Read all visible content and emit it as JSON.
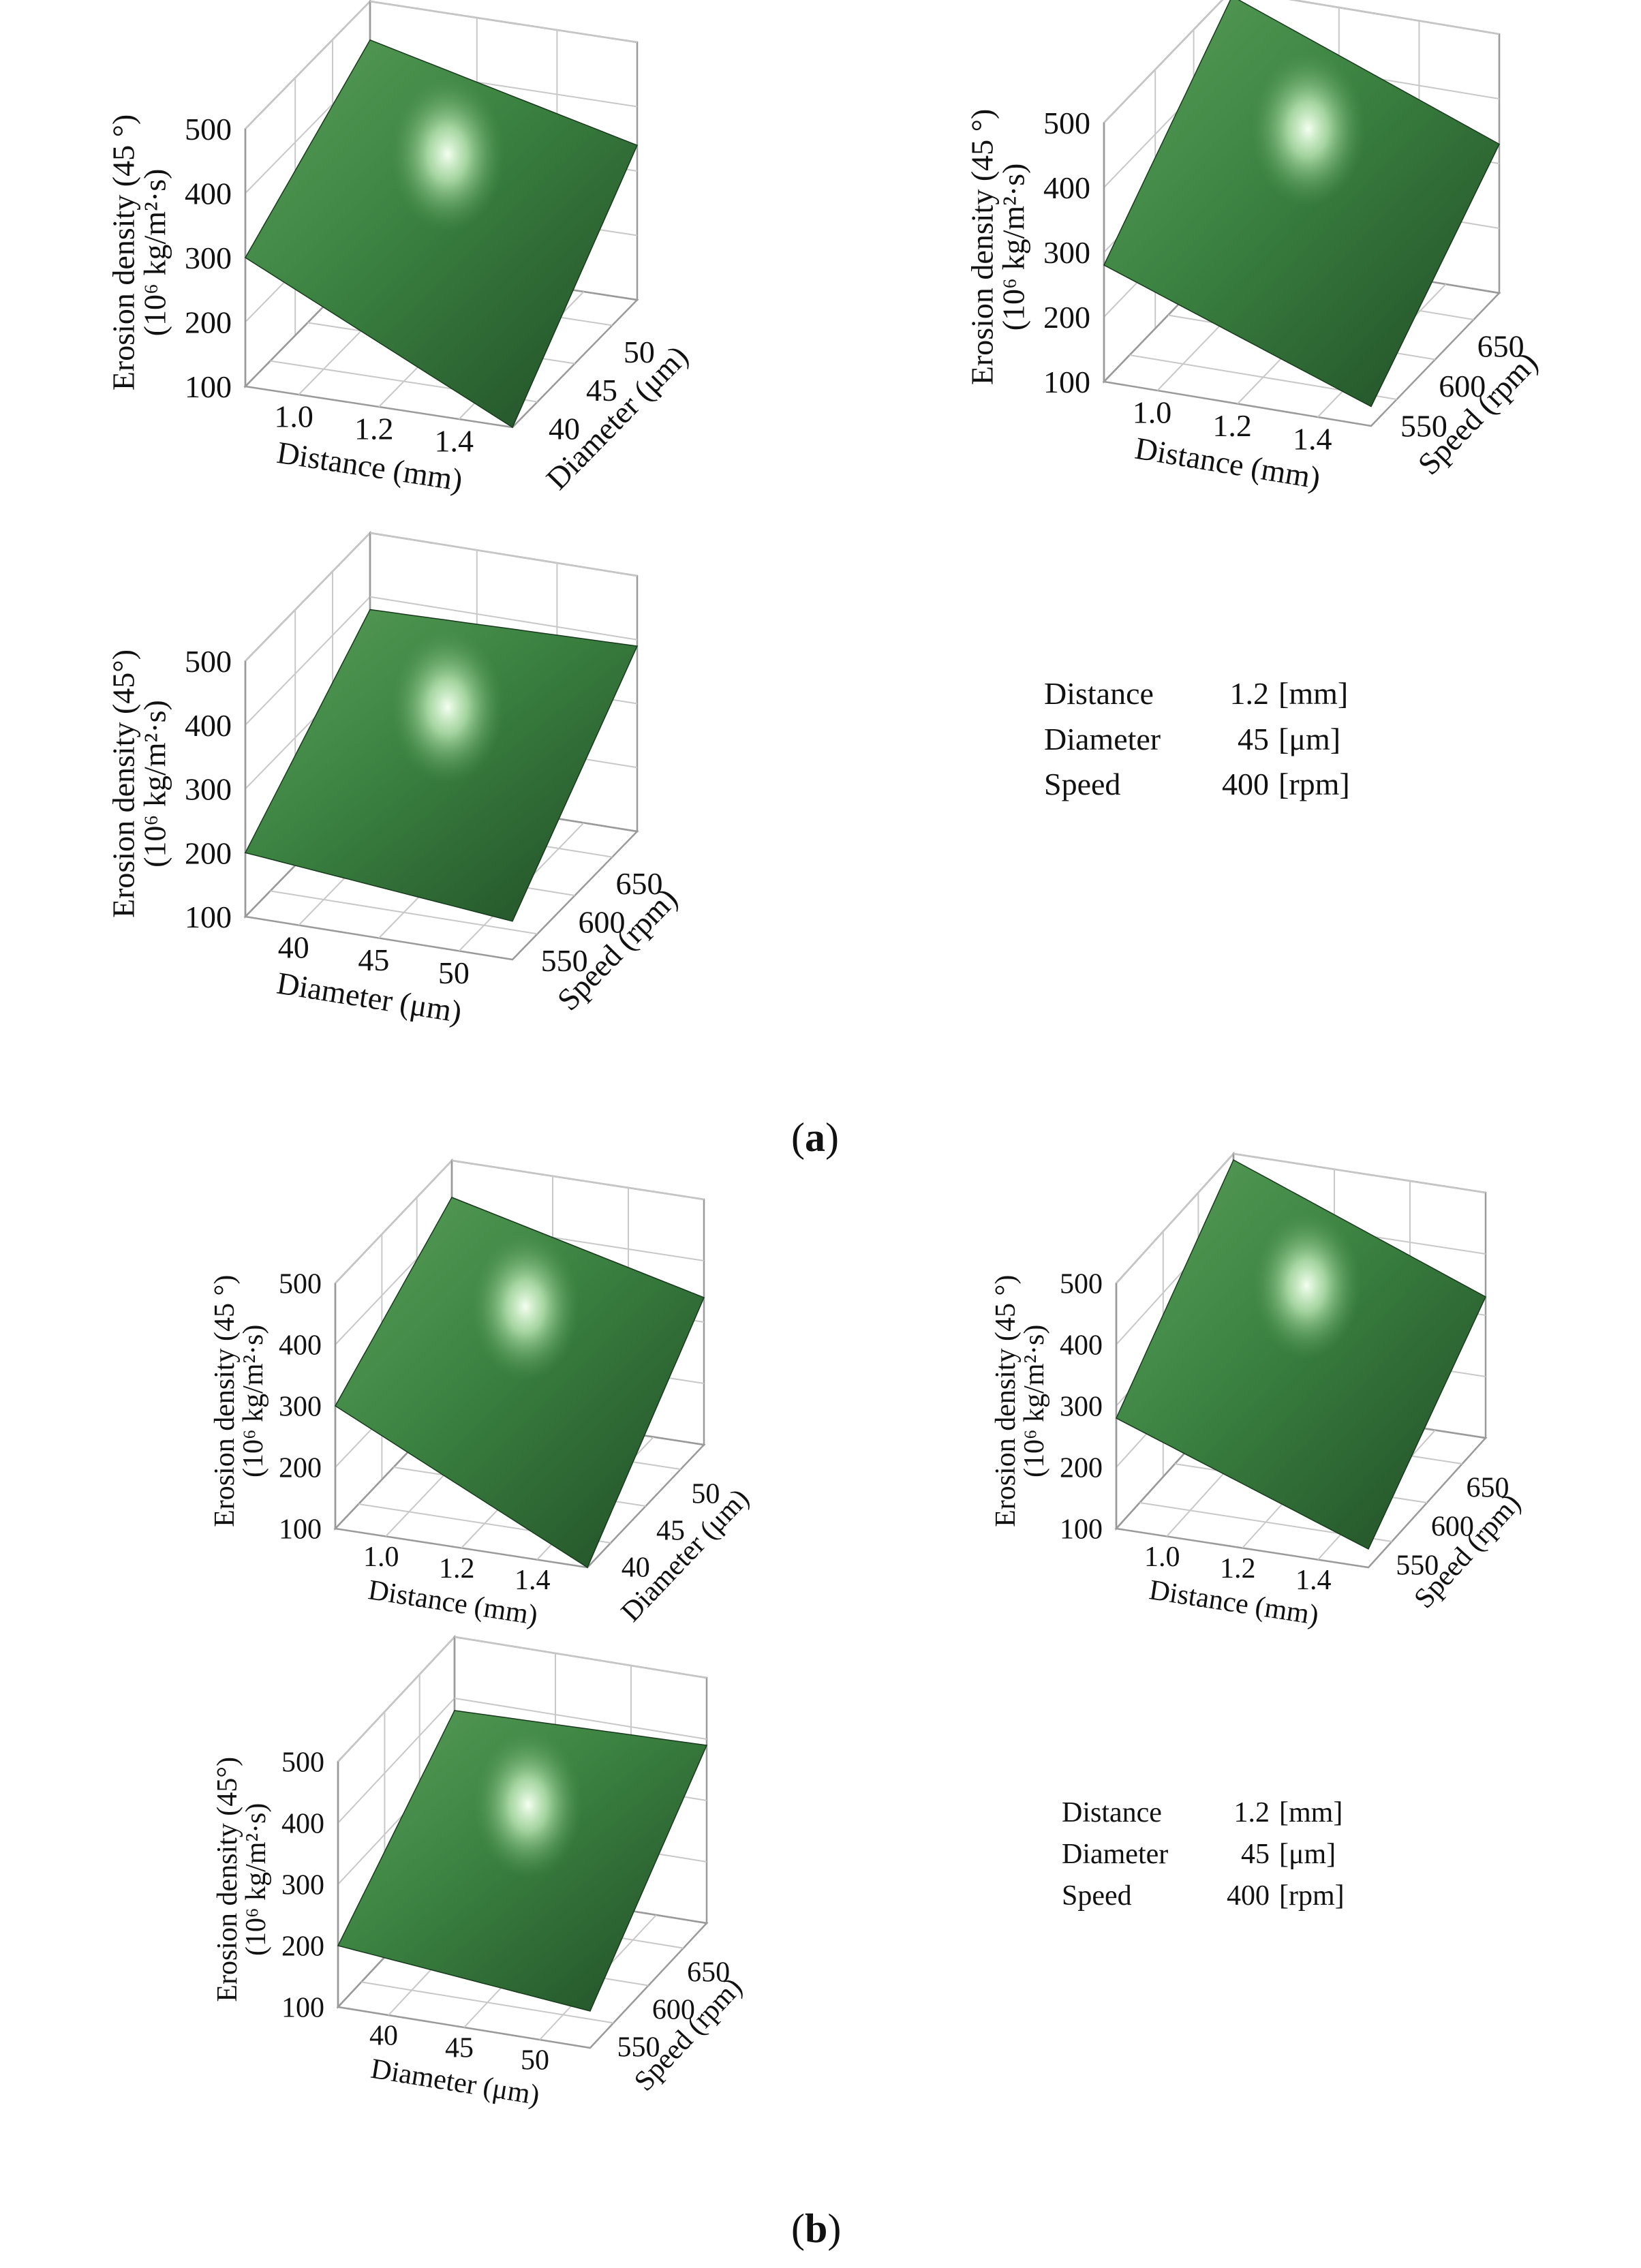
{
  "chart_data": [
    {
      "type": "surface",
      "panel": "a",
      "plot": 1,
      "zlabel_line1": "Erosion density (45 °)",
      "zlabel_line2": "(10⁶ kg/m²·s)",
      "zticks": [
        "500",
        "400",
        "300",
        "200",
        "100"
      ],
      "zlim": [
        100,
        500
      ],
      "xlabel": "Distance (mm)",
      "xticks": [
        "1.0",
        "1.2",
        "1.4"
      ],
      "ylabel": "Diameter (μm)",
      "yticks": [
        "40",
        "45",
        "50"
      ],
      "corners": {
        "left": 300,
        "back": 440,
        "right": 340,
        "front": 100
      },
      "peak": {
        "x": 1.25,
        "y": 47,
        "z": 440
      }
    },
    {
      "type": "surface",
      "panel": "a",
      "plot": 2,
      "zlabel_line1": "Erosion density (45 °)",
      "zlabel_line2": "(10⁶ kg/m²·s)",
      "zticks": [
        "500",
        "400",
        "300",
        "200",
        "100"
      ],
      "zlim": [
        100,
        500
      ],
      "xlabel": "Distance (mm)",
      "xticks": [
        "1.0",
        "1.2",
        "1.4"
      ],
      "ylabel": "Speed (rpm)",
      "yticks": [
        "550",
        "600",
        "650"
      ],
      "corners": {
        "left": 280,
        "back": 490,
        "right": 330,
        "front": 130
      },
      "peak": {
        "x": 1.2,
        "y": 620,
        "z": 480
      }
    },
    {
      "type": "surface",
      "panel": "a",
      "plot": 3,
      "zlabel_line1": "Erosion density (45°)",
      "zlabel_line2": "(10⁶ kg/m²·s)",
      "zticks": [
        "500",
        "400",
        "300",
        "200",
        "100"
      ],
      "zlim": [
        100,
        500
      ],
      "xlabel": "Diameter (μm)",
      "xticks": [
        "40",
        "45",
        "50"
      ],
      "ylabel": "Speed (rpm)",
      "yticks": [
        "550",
        "600",
        "650"
      ],
      "corners": {
        "left": 200,
        "back": 380,
        "right": 390,
        "front": 160
      },
      "peak": {
        "x": 48,
        "y": 620,
        "z": 390
      }
    },
    {
      "type": "surface",
      "panel": "b",
      "plot": 1,
      "zlabel_line1": "Erosion density (45 °)",
      "zlabel_line2": "(10⁶ kg/m²·s)",
      "zticks": [
        "500",
        "400",
        "300",
        "200",
        "100"
      ],
      "zlim": [
        100,
        500
      ],
      "xlabel": "Distance (mm)",
      "xticks": [
        "1.0",
        "1.2",
        "1.4"
      ],
      "ylabel": "Diameter (μm)",
      "yticks": [
        "40",
        "45",
        "50"
      ],
      "corners": {
        "left": 300,
        "back": 440,
        "right": 340,
        "front": 100
      },
      "peak": {
        "x": 1.25,
        "y": 47,
        "z": 440
      }
    },
    {
      "type": "surface",
      "panel": "b",
      "plot": 2,
      "zlabel_line1": "Erosion density (45 °)",
      "zlabel_line2": "(10⁶ kg/m²·s)",
      "zticks": [
        "500",
        "400",
        "300",
        "200",
        "100"
      ],
      "zlim": [
        100,
        500
      ],
      "xlabel": "Distance (mm)",
      "xticks": [
        "1.0",
        "1.2",
        "1.4"
      ],
      "ylabel": "Speed (rpm)",
      "yticks": [
        "550",
        "600",
        "650"
      ],
      "corners": {
        "left": 280,
        "back": 490,
        "right": 330,
        "front": 130
      },
      "peak": {
        "x": 1.2,
        "y": 620,
        "z": 480
      }
    },
    {
      "type": "surface",
      "panel": "b",
      "plot": 3,
      "zlabel_line1": "Erosion density (45°)",
      "zlabel_line2": "(10⁶ kg/m²·s)",
      "zticks": [
        "500",
        "400",
        "300",
        "200",
        "100"
      ],
      "zlim": [
        100,
        500
      ],
      "xlabel": "Diameter (μm)",
      "xticks": [
        "40",
        "45",
        "50"
      ],
      "ylabel": "Speed (rpm)",
      "yticks": [
        "550",
        "600",
        "650"
      ],
      "corners": {
        "left": 200,
        "back": 380,
        "right": 390,
        "front": 160
      },
      "peak": {
        "x": 48,
        "y": 620,
        "z": 390
      }
    }
  ],
  "param_tables": {
    "a": [
      {
        "name": "Distance",
        "value": "1.2",
        "unit": "[mm]"
      },
      {
        "name": "Diameter",
        "value": "45",
        "unit": "[μm]"
      },
      {
        "name": "Speed",
        "value": "400",
        "unit": "[rpm]"
      }
    ],
    "b": [
      {
        "name": "Distance",
        "value": "1.2",
        "unit": "[mm]"
      },
      {
        "name": "Diameter",
        "value": "45",
        "unit": "[μm]"
      },
      {
        "name": "Speed",
        "value": "400",
        "unit": "[rpm]"
      }
    ]
  },
  "captions": {
    "a": "a",
    "b": "b"
  },
  "colors": {
    "surface_dark": "#1f4a25",
    "surface_mid": "#3a8040",
    "surface_light": "#5aa05a",
    "highlight": "#f4fff0",
    "grid": "#c8c8c8",
    "axis": "#9a9a9a"
  }
}
